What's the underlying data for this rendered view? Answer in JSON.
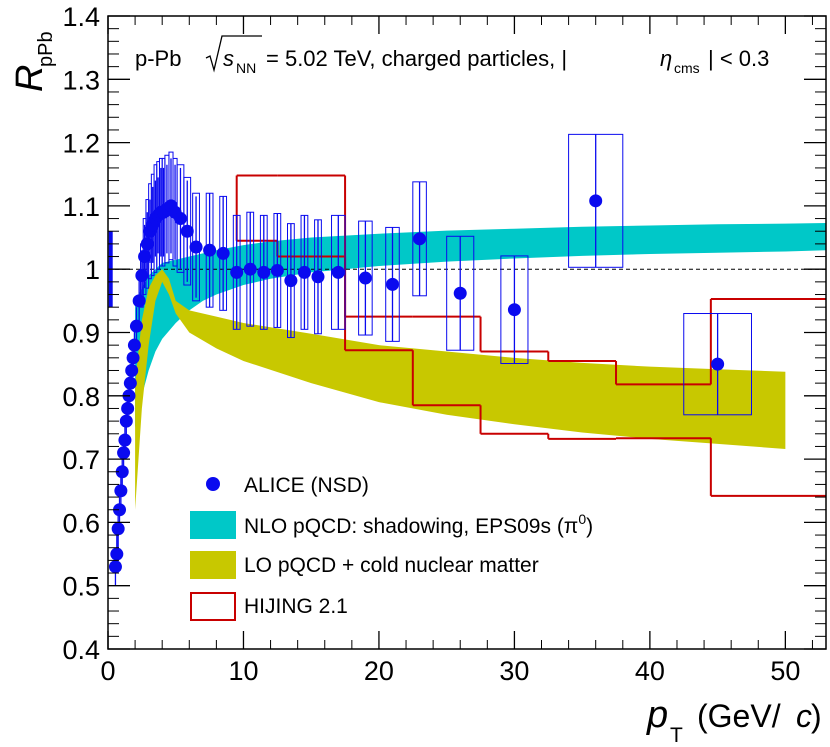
{
  "chart_data": {
    "type": "scatter",
    "title": "",
    "annotation": {
      "system": "p-Pb",
      "energy_symbol": "s",
      "energy_subscript": "NN",
      "energy_value": "= 5.02 TeV, charged particles, |",
      "eta_symbol": "η",
      "eta_subscript": "cms",
      "eta_cut": "| < 0.3"
    },
    "ylabel": {
      "main": "R",
      "sub": "pPb"
    },
    "xlabel": {
      "p": "p",
      "sub": "T",
      "unit_pre": "(GeV/",
      "unit_c": "c",
      "unit_post": ")"
    },
    "xlim": [
      0,
      53
    ],
    "ylim": [
      0.4,
      1.4
    ],
    "x_ticks": [
      0,
      10,
      20,
      30,
      40,
      50
    ],
    "y_ticks": [
      0.4,
      0.5,
      0.6,
      0.7,
      0.8,
      0.9,
      1,
      1.1,
      1.2,
      1.3,
      1.4
    ],
    "y_tick_labels": [
      "0.4",
      "0.5",
      "0.6",
      "0.7",
      "0.8",
      "0.9",
      "1",
      "1.1",
      "1.2",
      "1.3",
      "1.4"
    ],
    "reference_line_y": 1.0,
    "normalization_box": {
      "x": 0.2,
      "lo": 0.94,
      "hi": 1.06
    },
    "legend": [
      {
        "key": "alice",
        "label": "ALICE (NSD)",
        "color": "#0a0aef"
      },
      {
        "key": "nlo",
        "label": "NLO pQCD: shadowing, EPS09s (π",
        "sup": "0",
        "close": ")",
        "color": "#00c8c8"
      },
      {
        "key": "lo",
        "label": "LO pQCD + cold nuclear matter",
        "color": "#c8c800"
      },
      {
        "key": "hijing",
        "label": "HIJING 2.1",
        "color": "#c80000"
      }
    ],
    "series": [
      {
        "name": "ALICE (NSD)",
        "color": "#0a0aef",
        "points": [
          [
            0.55,
            0.53,
            0.01,
            0.03
          ],
          [
            0.65,
            0.55,
            0.01,
            0.03
          ],
          [
            0.75,
            0.59,
            0.01,
            0.03
          ],
          [
            0.85,
            0.62,
            0.01,
            0.03
          ],
          [
            0.95,
            0.65,
            0.01,
            0.03
          ],
          [
            1.05,
            0.68,
            0.01,
            0.03
          ],
          [
            1.15,
            0.71,
            0.01,
            0.03
          ],
          [
            1.25,
            0.73,
            0.01,
            0.03
          ],
          [
            1.35,
            0.76,
            0.01,
            0.03
          ],
          [
            1.45,
            0.78,
            0.01,
            0.03
          ],
          [
            1.55,
            0.8,
            0.01,
            0.03
          ],
          [
            1.65,
            0.82,
            0.01,
            0.03
          ],
          [
            1.75,
            0.84,
            0.01,
            0.03
          ],
          [
            1.85,
            0.86,
            0.01,
            0.03
          ],
          [
            1.95,
            0.88,
            0.01,
            0.03
          ],
          [
            2.1,
            0.91,
            0.01,
            0.03
          ],
          [
            2.3,
            0.95,
            0.01,
            0.04
          ],
          [
            2.5,
            0.99,
            0.01,
            0.04
          ],
          [
            2.7,
            1.02,
            0.01,
            0.05
          ],
          [
            2.9,
            1.04,
            0.01,
            0.05
          ],
          [
            3.1,
            1.06,
            0.01,
            0.05
          ],
          [
            3.3,
            1.07,
            0.01,
            0.06
          ],
          [
            3.5,
            1.08,
            0.01,
            0.06
          ],
          [
            3.7,
            1.085,
            0.01,
            0.06
          ],
          [
            3.9,
            1.09,
            0.01,
            0.07
          ],
          [
            4.1,
            1.09,
            0.01,
            0.07
          ],
          [
            4.35,
            1.095,
            0.01,
            0.07
          ],
          [
            4.65,
            1.1,
            0.01,
            0.075
          ],
          [
            4.95,
            1.09,
            0.01,
            0.075
          ],
          [
            5.35,
            1.08,
            0.01,
            0.08
          ],
          [
            5.85,
            1.06,
            0.01,
            0.08
          ],
          [
            6.5,
            1.035,
            0.01,
            0.08
          ],
          [
            7.5,
            1.03,
            0.01,
            0.09
          ],
          [
            8.5,
            1.025,
            0.015,
            0.09
          ],
          [
            9.5,
            0.995,
            0.02,
            0.09
          ],
          [
            10.5,
            1.0,
            0.02,
            0.09
          ],
          [
            11.5,
            0.995,
            0.02,
            0.09
          ],
          [
            12.5,
            0.998,
            0.02,
            0.09
          ],
          [
            13.5,
            0.982,
            0.02,
            0.09
          ],
          [
            14.5,
            0.995,
            0.02,
            0.09
          ],
          [
            15.5,
            0.988,
            0.02,
            0.09
          ],
          [
            17.0,
            0.995,
            0.03,
            0.09
          ],
          [
            19.0,
            0.986,
            0.03,
            0.09
          ],
          [
            21.0,
            0.976,
            0.03,
            0.09
          ],
          [
            23.0,
            1.048,
            0.04,
            0.09
          ],
          [
            26.0,
            0.962,
            0.05,
            0.09
          ],
          [
            30.0,
            0.936,
            0.06,
            0.085
          ],
          [
            36.0,
            1.108,
            0.1,
            0.105
          ],
          [
            45.0,
            0.85,
            0.12,
            0.08
          ]
        ],
        "boxes": [
          [
            2.5,
            0.2,
            0.05
          ],
          [
            2.7,
            0.2,
            0.06
          ],
          [
            2.9,
            0.2,
            0.07
          ],
          [
            3.1,
            0.2,
            0.075
          ],
          [
            3.3,
            0.2,
            0.08
          ],
          [
            3.5,
            0.2,
            0.085
          ],
          [
            3.7,
            0.2,
            0.085
          ],
          [
            3.9,
            0.2,
            0.085
          ],
          [
            4.1,
            0.2,
            0.085
          ],
          [
            4.35,
            0.3,
            0.085
          ],
          [
            4.65,
            0.3,
            0.085
          ],
          [
            4.95,
            0.3,
            0.085
          ],
          [
            5.35,
            0.5,
            0.085
          ],
          [
            5.85,
            0.5,
            0.085
          ],
          [
            6.5,
            0.5,
            0.085
          ],
          [
            7.5,
            0.5,
            0.09
          ],
          [
            8.5,
            0.5,
            0.09
          ],
          [
            9.5,
            0.5,
            0.09
          ],
          [
            10.5,
            0.5,
            0.09
          ],
          [
            11.5,
            0.5,
            0.09
          ],
          [
            12.5,
            0.5,
            0.09
          ],
          [
            13.5,
            0.5,
            0.09
          ],
          [
            14.5,
            0.5,
            0.09
          ],
          [
            15.5,
            0.5,
            0.09
          ],
          [
            17.0,
            1.0,
            0.09
          ],
          [
            19.0,
            1.0,
            0.09
          ],
          [
            21.0,
            1.0,
            0.09
          ],
          [
            23.0,
            1.0,
            0.09
          ],
          [
            26.0,
            2.0,
            0.09
          ],
          [
            30.0,
            2.0,
            0.085
          ],
          [
            36.0,
            4.0,
            0.105
          ],
          [
            45.0,
            5.0,
            0.08
          ]
        ]
      },
      {
        "name": "NLO pQCD: shadowing, EPS09s",
        "color": "#00c8c8",
        "band": [
          [
            2.0,
            0.75,
            0.95
          ],
          [
            2.5,
            0.8,
            0.97
          ],
          [
            3.0,
            0.84,
            0.99
          ],
          [
            3.5,
            0.87,
            1.0
          ],
          [
            4.0,
            0.89,
            1.01
          ],
          [
            5.0,
            0.915,
            1.015
          ],
          [
            6.0,
            0.935,
            1.02
          ],
          [
            7.0,
            0.95,
            1.025
          ],
          [
            8.0,
            0.96,
            1.03
          ],
          [
            10.0,
            0.975,
            1.038
          ],
          [
            12.0,
            0.985,
            1.044
          ],
          [
            15.0,
            0.995,
            1.05
          ],
          [
            20.0,
            1.005,
            1.056
          ],
          [
            25.0,
            1.012,
            1.061
          ],
          [
            30.0,
            1.017,
            1.064
          ],
          [
            35.0,
            1.021,
            1.067
          ],
          [
            40.0,
            1.024,
            1.069
          ],
          [
            45.0,
            1.026,
            1.071
          ],
          [
            50.0,
            1.028,
            1.072
          ],
          [
            53.0,
            1.03,
            1.073
          ]
        ]
      },
      {
        "name": "LO pQCD + cold nuclear matter",
        "color": "#c8c800",
        "band": [
          [
            2.0,
            0.62,
            0.82
          ],
          [
            2.5,
            0.78,
            0.92
          ],
          [
            3.0,
            0.88,
            0.97
          ],
          [
            3.5,
            0.95,
            0.99
          ],
          [
            4.0,
            0.98,
            1.0
          ],
          [
            4.5,
            0.96,
            0.985
          ],
          [
            5.0,
            0.93,
            0.95
          ],
          [
            6.0,
            0.9,
            0.935
          ],
          [
            8.0,
            0.875,
            0.925
          ],
          [
            10.0,
            0.855,
            0.915
          ],
          [
            15.0,
            0.82,
            0.898
          ],
          [
            20.0,
            0.79,
            0.88
          ],
          [
            25.0,
            0.77,
            0.87
          ],
          [
            30.0,
            0.755,
            0.86
          ],
          [
            35.0,
            0.742,
            0.852
          ],
          [
            40.0,
            0.732,
            0.846
          ],
          [
            45.0,
            0.724,
            0.842
          ],
          [
            50.0,
            0.716,
            0.838
          ]
        ]
      },
      {
        "name": "HIJING 2.1",
        "color": "#c80000",
        "steps": [
          [
            9.5,
            12.5,
            1.045,
            1.148
          ],
          [
            12.5,
            17.5,
            1.02,
            1.148
          ],
          [
            17.5,
            22.5,
            0.872,
            0.925
          ],
          [
            22.5,
            27.5,
            0.785,
            0.925
          ],
          [
            27.5,
            32.5,
            0.74,
            0.87
          ],
          [
            32.5,
            37.5,
            0.732,
            0.855
          ],
          [
            37.5,
            44.5,
            0.733,
            0.818
          ],
          [
            44.5,
            53.0,
            0.642,
            0.953
          ]
        ]
      }
    ]
  }
}
